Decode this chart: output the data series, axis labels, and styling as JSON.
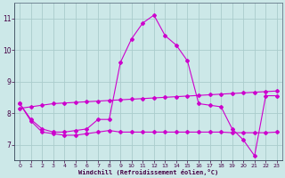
{
  "background_color": "#cce8e8",
  "grid_color": "#aacccc",
  "line_color": "#cc00cc",
  "xlabel": "Windchill (Refroidissement éolien,°C)",
  "xlim": [
    -0.5,
    23.5
  ],
  "ylim": [
    6.5,
    11.5
  ],
  "yticks": [
    7,
    8,
    9,
    10,
    11
  ],
  "xticks": [
    0,
    1,
    2,
    3,
    4,
    5,
    6,
    7,
    8,
    9,
    10,
    11,
    12,
    13,
    14,
    15,
    16,
    17,
    18,
    19,
    20,
    21,
    22,
    23
  ],
  "series1_y": [
    8.3,
    7.8,
    7.5,
    7.4,
    7.4,
    7.45,
    7.5,
    7.8,
    7.8,
    9.6,
    10.35,
    10.85,
    11.1,
    10.45,
    10.15,
    9.65,
    8.3,
    8.25,
    8.2,
    7.5,
    7.15,
    6.65,
    8.55,
    8.55
  ],
  "series2_y": [
    8.15,
    8.2,
    8.25,
    8.3,
    8.32,
    8.34,
    8.36,
    8.38,
    8.4,
    8.42,
    8.44,
    8.46,
    8.48,
    8.5,
    8.52,
    8.54,
    8.56,
    8.58,
    8.6,
    8.62,
    8.64,
    8.66,
    8.68,
    8.7
  ],
  "series3_y": [
    8.3,
    7.75,
    7.4,
    7.35,
    7.3,
    7.3,
    7.35,
    7.4,
    7.45,
    7.4,
    7.4,
    7.4,
    7.4,
    7.4,
    7.4,
    7.4,
    7.4,
    7.4,
    7.4,
    7.38,
    7.38,
    7.38,
    7.38,
    7.4
  ]
}
